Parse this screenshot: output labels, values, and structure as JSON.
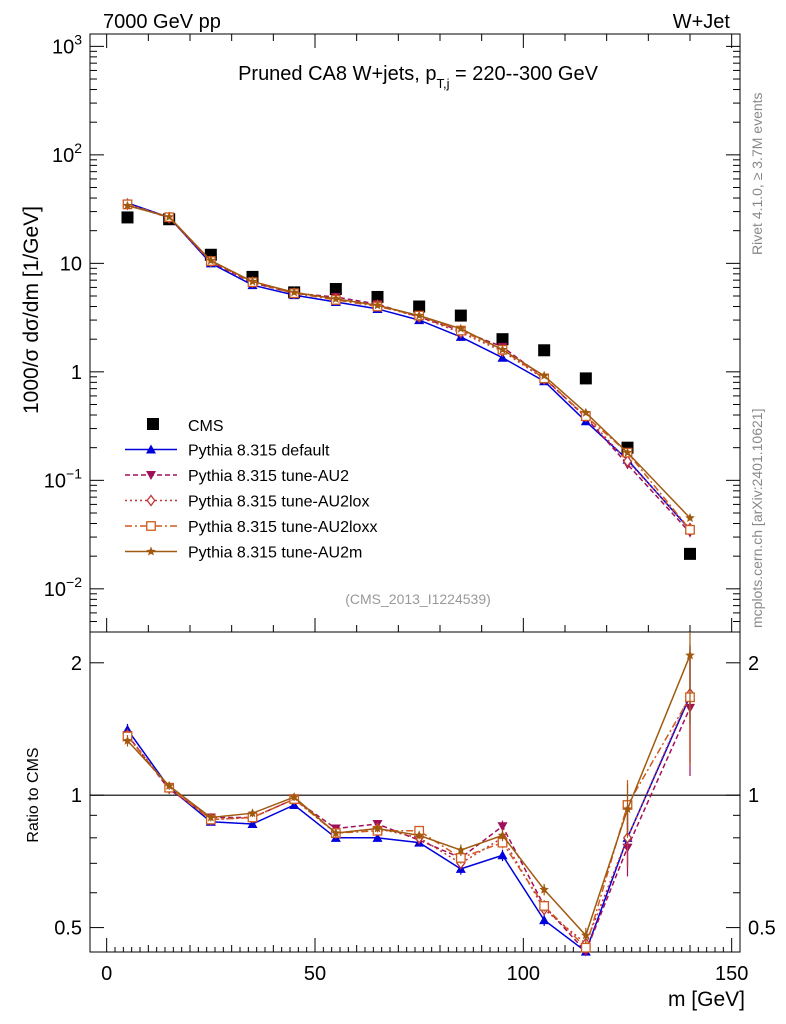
{
  "header": {
    "left": "7000 GeV pp",
    "right": "W+Jet"
  },
  "side_labels": {
    "rivet": "Rivet 4.1.0, ≥ 3.7M events",
    "mcplots": "mcplots.cern.ch [arXiv:2401.10621]"
  },
  "chart_data": [
    {
      "panel": "main",
      "type": "line",
      "title_main": "Pruned CA8 W+jets, p",
      "title_sub": "T,j",
      "title_tail": " = 220--300 GeV",
      "watermark": "(CMS_2013_I1224539)",
      "xlabel": "m [GeV]",
      "ylabel": "1000/σ  dσ/dm [1/GeV]",
      "yscale": "log",
      "ylim": [
        0.004,
        1300
      ],
      "xlim": [
        -4,
        152
      ],
      "yticks": [
        {
          "value": 0.01,
          "base": "10",
          "exp": "−2"
        },
        {
          "value": 0.1,
          "base": "10",
          "exp": "−1"
        },
        {
          "value": 1,
          "base": "1",
          "exp": ""
        },
        {
          "value": 10,
          "base": "10",
          "exp": ""
        },
        {
          "value": 100,
          "base": "10",
          "exp": "2"
        },
        {
          "value": 1000,
          "base": "10",
          "exp": "3"
        }
      ],
      "x": [
        5,
        15,
        25,
        35,
        45,
        55,
        65,
        75,
        85,
        95,
        105,
        115,
        125,
        140
      ],
      "cms": [
        26.5,
        25.5,
        12.0,
        7.5,
        5.4,
        5.8,
        4.9,
        4.0,
        3.3,
        2.0,
        1.58,
        0.87,
        0.2,
        0.021
      ],
      "series": [
        {
          "name": "Pythia 8.315 default",
          "color": "#0000dd",
          "dash": "",
          "marker": "triangle-up",
          "values": [
            36,
            26.5,
            10.0,
            6.3,
            5.1,
            4.4,
            3.8,
            3.0,
            2.1,
            1.35,
            0.82,
            0.35,
            0.155,
            0.035
          ]
        },
        {
          "name": "Pythia 8.315 tune-AU2",
          "color": "#a0105a",
          "dash": "5,3",
          "marker": "triangle-down",
          "values": [
            35,
            26.3,
            10.3,
            6.6,
            5.3,
            4.9,
            4.2,
            3.2,
            2.4,
            1.7,
            0.88,
            0.38,
            0.14,
            0.033
          ]
        },
        {
          "name": "Pythia 8.315 tune-AU2lox",
          "color": "#c03838",
          "dash": "2,3",
          "marker": "diamond-open",
          "values": [
            35,
            26.4,
            10.4,
            6.7,
            5.3,
            4.7,
            4.1,
            3.2,
            2.3,
            1.55,
            0.86,
            0.39,
            0.15,
            0.036
          ]
        },
        {
          "name": "Pythia 8.315 tune-AU2loxx",
          "color": "#d05a1e",
          "dash": "7,3,2,3",
          "marker": "square-open",
          "values": [
            35,
            26.6,
            10.5,
            6.7,
            5.3,
            4.6,
            4.0,
            3.3,
            2.4,
            1.6,
            0.87,
            0.39,
            0.18,
            0.035
          ]
        },
        {
          "name": "Pythia 8.315 tune-AU2m",
          "color": "#a05a10",
          "dash": "",
          "marker": "star",
          "values": [
            34,
            26.8,
            10.6,
            6.8,
            5.4,
            4.7,
            4.1,
            3.3,
            2.5,
            1.6,
            0.92,
            0.42,
            0.18,
            0.045
          ]
        }
      ],
      "legend": {
        "title": "CMS",
        "position": "lower-left"
      }
    },
    {
      "panel": "ratio",
      "type": "line",
      "ylabel": "Ratio to CMS",
      "yscale": "log",
      "ylim": [
        0.44,
        2.35
      ],
      "xlim": [
        -4,
        152
      ],
      "yticks": [
        0.5,
        1,
        2
      ],
      "xticks": [
        0,
        50,
        100,
        150
      ],
      "reference": 1,
      "series": [
        {
          "name": "Pythia 8.315 default",
          "values": [
            1.41,
            1.04,
            0.87,
            0.86,
            0.95,
            0.8,
            0.8,
            0.78,
            0.68,
            0.73,
            0.52,
            0.4,
            0.8,
            1.68
          ]
        },
        {
          "name": "Pythia 8.315 tune-AU2",
          "values": [
            1.37,
            1.03,
            0.89,
            0.89,
            0.98,
            0.84,
            0.86,
            0.79,
            0.72,
            0.85,
            0.56,
            0.44,
            0.76,
            1.58
          ]
        },
        {
          "name": "Pythia 8.315 tune-AU2lox",
          "values": [
            1.37,
            1.04,
            0.88,
            0.89,
            0.98,
            0.82,
            0.84,
            0.8,
            0.7,
            0.8,
            0.55,
            0.46,
            0.8,
            1.7
          ]
        },
        {
          "name": "Pythia 8.315 tune-AU2loxx",
          "values": [
            1.36,
            1.04,
            0.88,
            0.89,
            0.98,
            0.82,
            0.83,
            0.83,
            0.72,
            0.78,
            0.56,
            0.45,
            0.95,
            1.67
          ]
        },
        {
          "name": "Pythia 8.315 tune-AU2m",
          "values": [
            1.33,
            1.05,
            0.89,
            0.91,
            0.99,
            0.82,
            0.84,
            0.81,
            0.75,
            0.81,
            0.61,
            0.48,
            0.93,
            2.08
          ]
        }
      ],
      "errors": [
        0.03,
        0.02,
        0.02,
        0.02,
        0.02,
        0.02,
        0.02,
        0.02,
        0.03,
        0.03,
        0.03,
        0.04,
        0.14,
        0.3
      ]
    }
  ]
}
